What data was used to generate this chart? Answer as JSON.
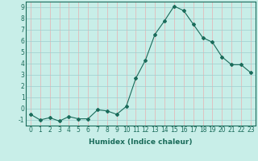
{
  "x": [
    0,
    1,
    2,
    3,
    4,
    5,
    6,
    7,
    8,
    9,
    10,
    11,
    12,
    13,
    14,
    15,
    16,
    17,
    18,
    19,
    20,
    21,
    22,
    23
  ],
  "y": [
    -0.5,
    -1.0,
    -0.8,
    -1.1,
    -0.7,
    -0.9,
    -0.9,
    -0.1,
    -0.2,
    -0.5,
    0.2,
    2.7,
    4.3,
    6.6,
    7.8,
    9.1,
    8.7,
    7.5,
    6.3,
    5.9,
    4.6,
    3.9,
    3.9,
    3.2
  ],
  "line_color": "#1a6b5a",
  "marker": "D",
  "marker_size": 2,
  "bg_color": "#c8eee8",
  "grid_color_v": "#e8b0b0",
  "grid_color_h": "#9ecece",
  "xlabel": "Humidex (Indice chaleur)",
  "xlim": [
    -0.5,
    23.5
  ],
  "ylim": [
    -1.5,
    9.5
  ],
  "yticks": [
    -1,
    0,
    1,
    2,
    3,
    4,
    5,
    6,
    7,
    8,
    9
  ],
  "xticks": [
    0,
    1,
    2,
    3,
    4,
    5,
    6,
    7,
    8,
    9,
    10,
    11,
    12,
    13,
    14,
    15,
    16,
    17,
    18,
    19,
    20,
    21,
    22,
    23
  ],
  "label_fontsize": 6.5,
  "tick_fontsize": 5.5
}
